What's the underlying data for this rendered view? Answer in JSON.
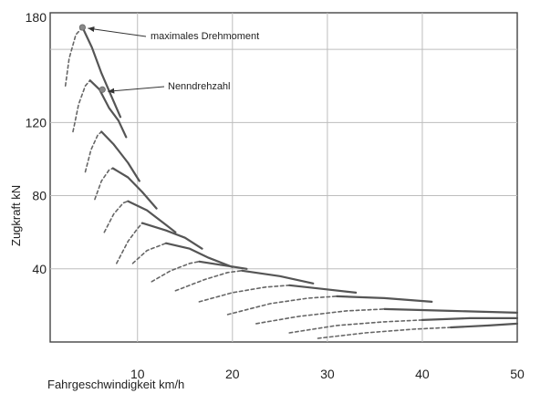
{
  "chart_data": {
    "type": "line",
    "xlabel": "Fahrgeschwindigkeit km/h",
    "ylabel": "Zugkraft kN",
    "xlim": [
      0,
      50
    ],
    "ylim": [
      0,
      180
    ],
    "x_ticks": [
      10,
      20,
      30,
      40,
      50
    ],
    "y_ticks": [
      40,
      80,
      120,
      180
    ],
    "grid": true,
    "colors": {
      "solid": "#555555",
      "dashed": "#666666",
      "grid": "#bdbdbd",
      "frame": "#444444",
      "marker": "#888888"
    },
    "series": [
      {
        "style": "dashed",
        "points": [
          [
            2.4,
            140
          ],
          [
            2.8,
            155
          ],
          [
            3.5,
            168
          ],
          [
            4.2,
            172
          ]
        ]
      },
      {
        "style": "solid",
        "points": [
          [
            4.2,
            172
          ],
          [
            5.2,
            161
          ],
          [
            6.2,
            147
          ],
          [
            7.2,
            135
          ],
          [
            8.2,
            123
          ]
        ]
      },
      {
        "style": "dashed",
        "points": [
          [
            3.2,
            115
          ],
          [
            3.8,
            130
          ],
          [
            4.5,
            140
          ],
          [
            5.0,
            143
          ]
        ]
      },
      {
        "style": "solid",
        "points": [
          [
            5.0,
            143
          ],
          [
            6.0,
            138
          ],
          [
            7.0,
            128
          ],
          [
            8.0,
            121
          ],
          [
            8.8,
            112
          ]
        ]
      },
      {
        "style": "dashed",
        "points": [
          [
            4.5,
            93
          ],
          [
            5.1,
            105
          ],
          [
            5.8,
            113
          ],
          [
            6.2,
            115
          ]
        ]
      },
      {
        "style": "solid",
        "points": [
          [
            6.2,
            115
          ],
          [
            7.5,
            108
          ],
          [
            9.0,
            98
          ],
          [
            10.2,
            88
          ]
        ]
      },
      {
        "style": "dashed",
        "points": [
          [
            5.5,
            78
          ],
          [
            6.2,
            88
          ],
          [
            7.0,
            94
          ],
          [
            7.4,
            95
          ]
        ]
      },
      {
        "style": "solid",
        "points": [
          [
            7.4,
            95
          ],
          [
            9.0,
            90
          ],
          [
            10.5,
            82
          ],
          [
            12.0,
            73
          ]
        ]
      },
      {
        "style": "dashed",
        "points": [
          [
            6.5,
            60
          ],
          [
            7.5,
            70
          ],
          [
            8.5,
            76
          ],
          [
            9.0,
            77
          ]
        ]
      },
      {
        "style": "solid",
        "points": [
          [
            9.0,
            77
          ],
          [
            11.0,
            72
          ],
          [
            13.0,
            64
          ],
          [
            14.0,
            60
          ]
        ]
      },
      {
        "style": "dashed",
        "points": [
          [
            7.8,
            43
          ],
          [
            9.0,
            55
          ],
          [
            10.0,
            62
          ],
          [
            10.5,
            65
          ]
        ]
      },
      {
        "style": "solid",
        "points": [
          [
            10.5,
            65
          ],
          [
            13.0,
            61
          ],
          [
            15.0,
            57
          ],
          [
            16.8,
            51
          ]
        ]
      },
      {
        "style": "dashed",
        "points": [
          [
            9.5,
            43
          ],
          [
            11.0,
            50
          ],
          [
            12.5,
            53
          ],
          [
            13.0,
            54
          ]
        ]
      },
      {
        "style": "solid",
        "points": [
          [
            13.0,
            54
          ],
          [
            15.5,
            51
          ],
          [
            17.5,
            46
          ],
          [
            20.0,
            41
          ]
        ]
      },
      {
        "style": "dashed",
        "points": [
          [
            11.5,
            33
          ],
          [
            13.5,
            39
          ],
          [
            15.5,
            43
          ],
          [
            16.5,
            44
          ]
        ]
      },
      {
        "style": "solid",
        "points": [
          [
            16.5,
            44
          ],
          [
            19.0,
            42
          ],
          [
            21.5,
            40
          ]
        ]
      },
      {
        "style": "dashed",
        "points": [
          [
            14.0,
            28
          ],
          [
            17.0,
            34
          ],
          [
            19.5,
            38
          ],
          [
            21.0,
            39
          ]
        ]
      },
      {
        "style": "solid",
        "points": [
          [
            21.0,
            39
          ],
          [
            25.0,
            36
          ],
          [
            28.5,
            32
          ]
        ]
      },
      {
        "style": "dashed",
        "points": [
          [
            16.5,
            22
          ],
          [
            20.0,
            27
          ],
          [
            23.5,
            30
          ],
          [
            26.0,
            31
          ]
        ]
      },
      {
        "style": "solid",
        "points": [
          [
            26.0,
            31
          ],
          [
            29.5,
            29
          ],
          [
            33.0,
            27
          ]
        ]
      },
      {
        "style": "dashed",
        "points": [
          [
            19.5,
            15
          ],
          [
            24.0,
            21
          ],
          [
            28.0,
            24
          ],
          [
            31.0,
            25
          ]
        ]
      },
      {
        "style": "solid",
        "points": [
          [
            31.0,
            25
          ],
          [
            36.0,
            24
          ],
          [
            41.0,
            22
          ]
        ]
      },
      {
        "style": "dashed",
        "points": [
          [
            22.5,
            10
          ],
          [
            27.0,
            14
          ],
          [
            32.0,
            17
          ],
          [
            36.0,
            18
          ]
        ]
      },
      {
        "style": "solid",
        "points": [
          [
            36.0,
            18
          ],
          [
            43.0,
            17
          ],
          [
            50.0,
            16
          ]
        ]
      },
      {
        "style": "dashed",
        "points": [
          [
            26.0,
            5
          ],
          [
            31.0,
            9
          ],
          [
            36.0,
            11
          ],
          [
            40.0,
            12
          ]
        ]
      },
      {
        "style": "solid",
        "points": [
          [
            40.0,
            12
          ],
          [
            45.0,
            13
          ],
          [
            50.0,
            13
          ]
        ]
      },
      {
        "style": "dashed",
        "points": [
          [
            29.0,
            2
          ],
          [
            34.0,
            5
          ],
          [
            39.0,
            7
          ],
          [
            43.0,
            8
          ]
        ]
      },
      {
        "style": "solid",
        "points": [
          [
            43.0,
            8
          ],
          [
            47.0,
            9
          ],
          [
            50.0,
            10
          ]
        ]
      }
    ],
    "annotations": [
      {
        "text": "maximales Drehmoment",
        "point": [
          4.2,
          172
        ]
      },
      {
        "text": "Nenndrehzahl",
        "point": [
          6.3,
          138
        ]
      }
    ]
  }
}
